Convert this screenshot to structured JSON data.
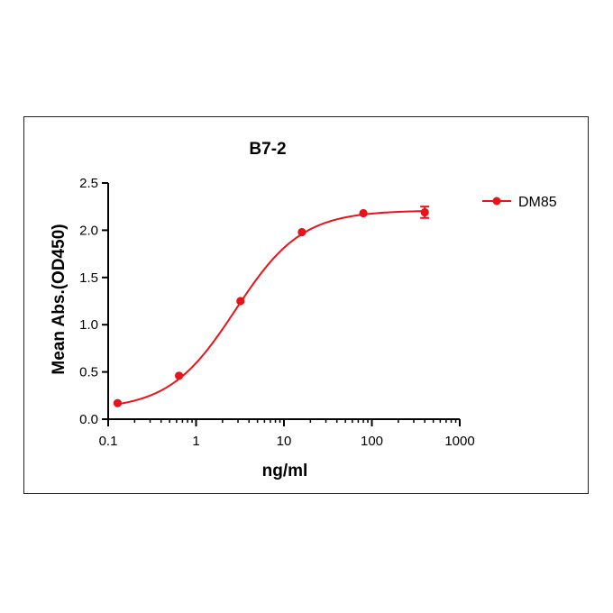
{
  "chart_data": {
    "type": "scatter",
    "title": "B7-2",
    "xlabel": "ng/ml",
    "ylabel": "Mean Abs.(OD450)",
    "x_scale": "log",
    "xlim": [
      0.1,
      1000
    ],
    "ylim": [
      0,
      2.5
    ],
    "x_ticks": [
      0.1,
      1,
      10,
      100,
      1000
    ],
    "x_tick_labels": [
      "0.1",
      "1",
      "10",
      "100",
      "1000"
    ],
    "y_ticks": [
      0,
      0.5,
      1,
      1.5,
      2,
      2.5
    ],
    "y_tick_labels": [
      "0.0",
      "0.5",
      "1.0",
      "1.5",
      "2.0",
      "2.5"
    ],
    "legend_position": "top-right",
    "series": [
      {
        "name": "DM85",
        "color": "#e8141b",
        "x": [
          0.128,
          0.64,
          3.2,
          16,
          80,
          400
        ],
        "y": [
          0.17,
          0.46,
          1.25,
          1.98,
          2.18,
          2.19
        ],
        "error": [
          0,
          0,
          0,
          0,
          0,
          0.06
        ],
        "fit": "4PL sigmoidal"
      }
    ]
  }
}
